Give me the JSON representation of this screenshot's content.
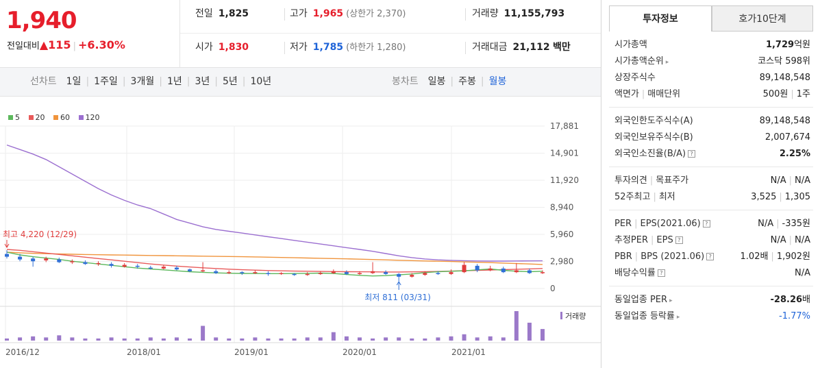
{
  "quote": {
    "price": "1,940",
    "change_label": "전일대비",
    "change_arrow": "▲",
    "change_amount": "115",
    "change_pct": "+6.30%"
  },
  "stats": {
    "prev_label": "전일",
    "prev": "1,825",
    "high_label": "고가",
    "high": "1,965",
    "upper_limit": "(상한가 2,370)",
    "volume_label": "거래량",
    "volume": "11,155,793",
    "open_label": "시가",
    "open": "1,830",
    "low_label": "저가",
    "low": "1,785",
    "lower_limit": "(하한가 1,280)",
    "amount_label": "거래대금",
    "amount": "21,112",
    "amount_unit": "백만"
  },
  "toolbar": {
    "line_label": "선차트",
    "line_items": [
      "1일",
      "1주일",
      "3개월",
      "1년",
      "3년",
      "5년",
      "10년"
    ],
    "candle_label": "봉차트",
    "candle_items": [
      "일봉",
      "주봉",
      "월봉"
    ],
    "active_candle": "월봉"
  },
  "chart_data": {
    "type": "line",
    "legend": [
      {
        "name": "5",
        "color": "#5cb85c"
      },
      {
        "name": "20",
        "color": "#e85a5a"
      },
      {
        "name": "60",
        "color": "#f0943c"
      },
      {
        "name": "120",
        "color": "#9b6fd0"
      }
    ],
    "y_ticks": [
      "17,881",
      "14,901",
      "11,920",
      "8,940",
      "5,960",
      "2,980",
      "0"
    ],
    "ylim": [
      0,
      17881
    ],
    "x_ticks": [
      "2016/12",
      "2018/01",
      "2019/01",
      "2020/01",
      "2021/01"
    ],
    "high_annotation": "최고 4,220 (12/29)",
    "low_annotation": "최저 811 (03/31)",
    "volume_label": "거래량",
    "ma120": [
      15800,
      15300,
      14800,
      14200,
      13400,
      12600,
      11800,
      11000,
      10300,
      9700,
      9200,
      8800,
      8200,
      7600,
      7200,
      6800,
      6500,
      6300,
      6100,
      5900,
      5700,
      5500,
      5300,
      5100,
      4900,
      4700,
      4500,
      4300,
      4100,
      3850,
      3600,
      3400,
      3250,
      3150,
      3100,
      3060,
      3030,
      3020,
      3020,
      3030,
      3040,
      3050
    ],
    "ma60": [
      4000,
      3930,
      3870,
      3830,
      3800,
      3770,
      3740,
      3720,
      3700,
      3680,
      3660,
      3640,
      3620,
      3600,
      3580,
      3560,
      3540,
      3520,
      3500,
      3480,
      3450,
      3420,
      3390,
      3360,
      3330,
      3300,
      3270,
      3230,
      3190,
      3150,
      3110,
      3070,
      3030,
      3000,
      2970,
      2930,
      2890,
      2850,
      2800,
      2750,
      2700,
      2650
    ],
    "ma20": [
      4300,
      4200,
      4050,
      3900,
      3750,
      3600,
      3450,
      3300,
      3150,
      3000,
      2850,
      2700,
      2580,
      2470,
      2370,
      2280,
      2200,
      2130,
      2070,
      2020,
      1980,
      1950,
      1920,
      1900,
      1880,
      1860,
      1850,
      1840,
      1830,
      1820,
      1820,
      1830,
      1850,
      1880,
      1920,
      1960,
      2000,
      2040,
      2080,
      2120,
      2160,
      2200
    ],
    "ma5": [
      4000,
      3700,
      3500,
      3350,
      3200,
      3000,
      2850,
      2700,
      2550,
      2400,
      2250,
      2150,
      2050,
      1950,
      1850,
      1780,
      1720,
      1680,
      1660,
      1650,
      1640,
      1640,
      1650,
      1670,
      1700,
      1650,
      1550,
      1450,
      1380,
      1420,
      1500,
      1600,
      1750,
      1850,
      1900,
      1950,
      2050,
      2150,
      2000,
      1900,
      1850,
      1900
    ],
    "candles": [
      {
        "o": 3800,
        "c": 3500,
        "h": 4220,
        "l": 3300
      },
      {
        "o": 3500,
        "c": 3200,
        "h": 3800,
        "l": 3000
      },
      {
        "o": 3300,
        "c": 3000,
        "h": 3500,
        "l": 2400
      },
      {
        "o": 3100,
        "c": 3300,
        "h": 3500,
        "l": 2900
      },
      {
        "o": 3200,
        "c": 2900,
        "h": 3400,
        "l": 2800
      },
      {
        "o": 2900,
        "c": 3000,
        "h": 3200,
        "l": 2700
      },
      {
        "o": 2900,
        "c": 2700,
        "h": 3100,
        "l": 2600
      },
      {
        "o": 2700,
        "c": 2800,
        "h": 3000,
        "l": 2500
      },
      {
        "o": 2700,
        "c": 2500,
        "h": 2900,
        "l": 2300
      },
      {
        "o": 2400,
        "c": 2600,
        "h": 2800,
        "l": 2300
      },
      {
        "o": 2500,
        "c": 2400,
        "h": 2700,
        "l": 2200
      },
      {
        "o": 2300,
        "c": 2200,
        "h": 2500,
        "l": 2100
      },
      {
        "o": 2200,
        "c": 2400,
        "h": 2600,
        "l": 2100
      },
      {
        "o": 2300,
        "c": 2100,
        "h": 2500,
        "l": 2000
      },
      {
        "o": 2100,
        "c": 1900,
        "h": 2200,
        "l": 1800
      },
      {
        "o": 1900,
        "c": 2000,
        "h": 2900,
        "l": 1800
      },
      {
        "o": 1900,
        "c": 1700,
        "h": 2100,
        "l": 1600
      },
      {
        "o": 1700,
        "c": 1800,
        "h": 2000,
        "l": 1600
      },
      {
        "o": 1800,
        "c": 1700,
        "h": 1900,
        "l": 1500
      },
      {
        "o": 1700,
        "c": 1800,
        "h": 2000,
        "l": 1600
      },
      {
        "o": 1700,
        "c": 1600,
        "h": 1900,
        "l": 1400
      },
      {
        "o": 1600,
        "c": 1700,
        "h": 1800,
        "l": 1500
      },
      {
        "o": 1600,
        "c": 1500,
        "h": 1700,
        "l": 1400
      },
      {
        "o": 1500,
        "c": 1600,
        "h": 1800,
        "l": 1400
      },
      {
        "o": 1600,
        "c": 1700,
        "h": 1900,
        "l": 1500
      },
      {
        "o": 1700,
        "c": 1900,
        "h": 2100,
        "l": 1600
      },
      {
        "o": 1800,
        "c": 1600,
        "h": 2000,
        "l": 1500
      },
      {
        "o": 1600,
        "c": 1700,
        "h": 1900,
        "l": 1500
      },
      {
        "o": 1700,
        "c": 1900,
        "h": 2900,
        "l": 1600
      },
      {
        "o": 1800,
        "c": 1600,
        "h": 2000,
        "l": 1500
      },
      {
        "o": 1600,
        "c": 1300,
        "h": 1700,
        "l": 811
      },
      {
        "o": 1300,
        "c": 1500,
        "h": 1700,
        "l": 1200
      },
      {
        "o": 1500,
        "c": 1700,
        "h": 1900,
        "l": 1400
      },
      {
        "o": 1700,
        "c": 1600,
        "h": 1900,
        "l": 1500
      },
      {
        "o": 1600,
        "c": 1800,
        "h": 2100,
        "l": 1500
      },
      {
        "o": 1800,
        "c": 2600,
        "h": 2900,
        "l": 1700
      },
      {
        "o": 2500,
        "c": 2000,
        "h": 2700,
        "l": 1800
      },
      {
        "o": 2000,
        "c": 2200,
        "h": 2500,
        "l": 1900
      },
      {
        "o": 2200,
        "c": 1800,
        "h": 2400,
        "l": 1700
      },
      {
        "o": 1800,
        "c": 2000,
        "h": 2800,
        "l": 1700
      },
      {
        "o": 2000,
        "c": 1700,
        "h": 2200,
        "l": 1600
      },
      {
        "o": 1700,
        "c": 1800,
        "h": 2000,
        "l": 1600
      }
    ],
    "volume": [
      2,
      3,
      4,
      3,
      5,
      3,
      2,
      2,
      3,
      2,
      2,
      3,
      2,
      3,
      2,
      14,
      3,
      2,
      2,
      3,
      2,
      2,
      2,
      3,
      3,
      8,
      4,
      3,
      2,
      3,
      3,
      2,
      2,
      3,
      4,
      6,
      3,
      4,
      3,
      28,
      17,
      11
    ]
  },
  "info_tabs": [
    "투자정보",
    "호가10단계"
  ],
  "info": {
    "g1": [
      {
        "k": "시가총액",
        "v": "1,729",
        "unit": "억원"
      },
      {
        "k": "시가총액순위",
        "v": "코스닥 598위"
      },
      {
        "k": "상장주식수",
        "v": "89,148,548"
      },
      {
        "k": "액면가",
        "k2": "매매단위",
        "v": "500원",
        "v2": "1주"
      }
    ],
    "g2": [
      {
        "k": "외국인한도주식수(A)",
        "v": "89,148,548"
      },
      {
        "k": "외국인보유주식수(B)",
        "v": "2,007,674"
      },
      {
        "k": "외국인소진율(B/A)",
        "v": "2.25%"
      }
    ],
    "g3": [
      {
        "k": "투자의견",
        "k2": "목표주가",
        "v": "N/A",
        "v2": "N/A"
      },
      {
        "k": "52주최고",
        "k2": "최저",
        "v": "3,525",
        "v2": "1,305"
      }
    ],
    "g4": [
      {
        "k": "PER",
        "k2": "EPS(2021.06)",
        "v": "N/A",
        "v2": "-335원"
      },
      {
        "k": "추정PER",
        "k2": "EPS",
        "v": "N/A",
        "v2": "N/A"
      },
      {
        "k": "PBR",
        "k2": "BPS (2021.06)",
        "v": "1.02배",
        "v2": "1,902원"
      },
      {
        "k": "배당수익률",
        "v": "N/A"
      }
    ],
    "g5": [
      {
        "k": "동일업종 PER",
        "v": "-28.26",
        "unit": "배"
      },
      {
        "k": "동일업종 등락률",
        "v": "-1.77%"
      }
    ]
  }
}
